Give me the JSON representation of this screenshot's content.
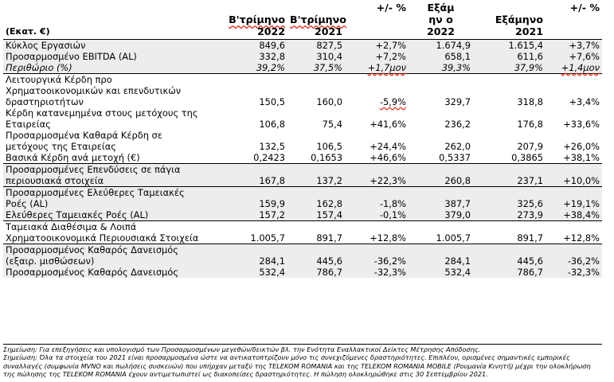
{
  "table": {
    "unit_label": "(Εκατ. €)",
    "headers": [
      {
        "line1": "Β'τρίμηνο",
        "line2": "2022"
      },
      {
        "line1": "Β'τρίμηνο",
        "line2": "2021"
      },
      {
        "line1": "+/- %",
        "line2": ""
      },
      {
        "line1": "Εξάμην ο",
        "line2": "2022"
      },
      {
        "line1": "Εξάμηνο",
        "line2": "2021"
      },
      {
        "line1": "+/- %",
        "line2": ""
      }
    ],
    "rows": [
      {
        "label": "Κύκλος Εργασιών",
        "values": [
          "849,6",
          "827,5",
          "+2,7%",
          "1.674,9",
          "1.615,4",
          "+3,7%"
        ]
      },
      {
        "label": "Προσαρμοσμένο EBITDA (AL)",
        "values": [
          "332,8",
          "310,4",
          "+7,2%",
          "658,1",
          "611,6",
          "+7,6%"
        ]
      },
      {
        "label": "Περιθώριο (%)",
        "values": [
          "39,2%",
          "37,5%",
          "+1,7μον",
          "39,3%",
          "37,9%",
          "+1,4μον"
        ]
      },
      {
        "label": "Λειτουργικά Κέρδη προ Χρηματοοικονομικών και επενδυτικών δραστηριοτήτων",
        "values": [
          "150,5",
          "160,0",
          "-5,9%",
          "329,7",
          "318,8",
          "+3,4%"
        ]
      },
      {
        "label": "Κέρδη κατανεμημένα στους μετόχους της Εταιρείας",
        "values": [
          "106,8",
          "75,4",
          "+41,6%",
          "236,2",
          "176,8",
          "+33,6%"
        ]
      },
      {
        "label": "Προσαρμοσμένα Καθαρά Κέρδη σε μετόχους της Εταιρείας",
        "values": [
          "132,5",
          "106,5",
          "+24,4%",
          "262,0",
          "207,9",
          "+26,0%"
        ]
      },
      {
        "label": "Βασικά Κέρδη ανά μετοχή (€)",
        "values": [
          "0,2423",
          "0,1653",
          "+46,6%",
          "0,5337",
          "0,3865",
          "+38,1%"
        ]
      },
      {
        "label": "Προσαρμοσμένες Επενδύσεις σε πάγια περιουσιακά στοιχεία",
        "values": [
          "167,8",
          "137,2",
          "+22,3%",
          "260,8",
          "237,1",
          "+10,0%"
        ]
      },
      {
        "label": "Προσαρμοσμένες Ελεύθερες Ταμειακές Ροές (AL)",
        "values": [
          "159,9",
          "162,8",
          "-1,8%",
          "387,7",
          "325,6",
          "+19,1%"
        ]
      },
      {
        "label": "Ελεύθερες Ταμειακές Ροές (AL)",
        "values": [
          "157,2",
          "157,4",
          "-0,1%",
          "379,0",
          "273,9",
          "+38,4%"
        ]
      },
      {
        "label": "Ταμειακά Διαθέσιμα & Λοιπά Χρηματοοικονομικά Περιουσιακά Στοιχεία",
        "values": [
          "1.005,7",
          "891,7",
          "+12,8%",
          "1.005,7",
          "891,7",
          "+12,8%"
        ]
      },
      {
        "label": "Προσαρμοσμένος Καθαρός Δανεισμός (εξαιρ. μισθώσεων)",
        "values": [
          "284,1",
          "445,6",
          "-36,2%",
          "284,1",
          "445,6",
          "-36,2%"
        ]
      },
      {
        "label": "Προσαρμοσμένος Καθαρός Δανεισμός",
        "values": [
          "532,4",
          "786,7",
          "-32,3%",
          "532,4",
          "786,7",
          "-32,3%"
        ]
      }
    ]
  },
  "notes": [
    "Σημείωση: Για επεξηγήσεις και υπολογισμό των Προσαρμοσμένων μεγεθών/δεικτών βλ. την Ενότητα Εναλλακτικοί Δείκτες Μέτρησης Απόδοσης.",
    "Σημείωση: Όλα τα στοιχεία του 2021 είναι προσαρμοσμένα ώστε να αντικατοπτρίζουν μόνο τις συνεχιζόμενες δραστηριότητες. Επιπλέον, ορισμένες σημαντικές εμπορικές συναλλαγές (συμφωνία MVNO και πωλήσεις συσκευών) που υπήρχαν μεταξύ της TELEKOM ROMANIA και της TELEKOM ROMANIA MOBILE (Ρουμανία Κινητή) μέχρι την ολοκλήρωση της πώλησης της TELEKOM ROMANIA έχουν αντιμετωπιστεί ως διακοπείσες δραστηριότητες. Η πώληση ολοκληρώθηκε στις 30 Σεπτεμβρίου 2021."
  ]
}
